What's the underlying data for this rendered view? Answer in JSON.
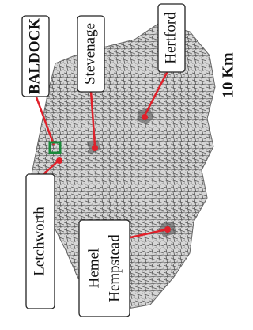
{
  "map": {
    "labels": {
      "baldock": "BALDOCK",
      "stevenage": "Stevenage",
      "hertford": "Hertford",
      "letchworth": "Letchworth",
      "hemel": [
        "Hemel",
        "Hempstead"
      ]
    },
    "scale": "10 Km"
  }
}
